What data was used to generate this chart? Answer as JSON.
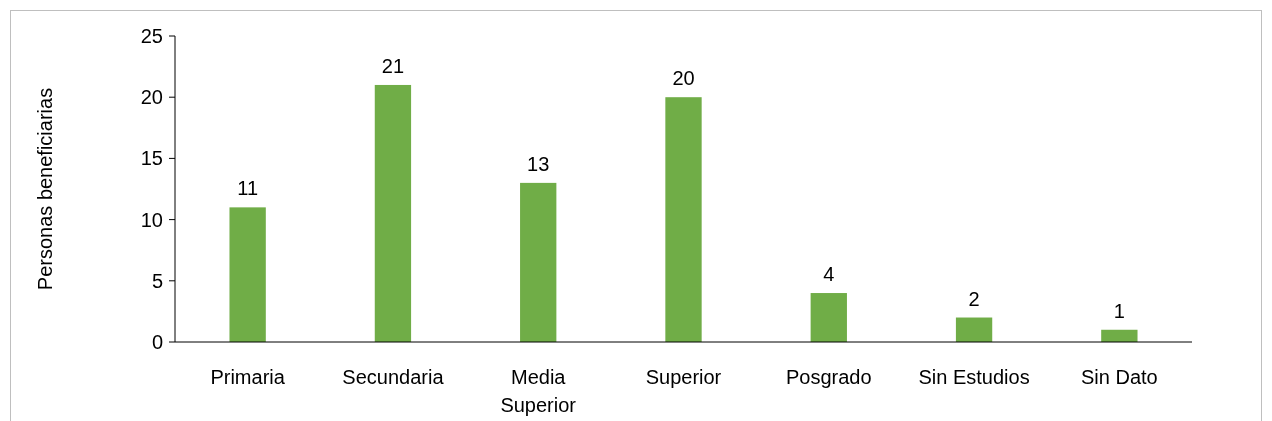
{
  "chart_data": {
    "type": "bar",
    "ylabel": "Personas beneficiarias",
    "categories": [
      "Primaria",
      "Secundaria",
      "Media Superior",
      "Superior",
      "Posgrado",
      "Sin Estudios",
      "Sin Dato"
    ],
    "values": [
      11,
      21,
      13,
      20,
      4,
      2,
      1
    ],
    "color": "#70ad47",
    "ylim": [
      0,
      25
    ],
    "yticks": [
      0,
      5,
      10,
      15,
      20,
      25
    ],
    "data_labels": true,
    "grid": false
  }
}
